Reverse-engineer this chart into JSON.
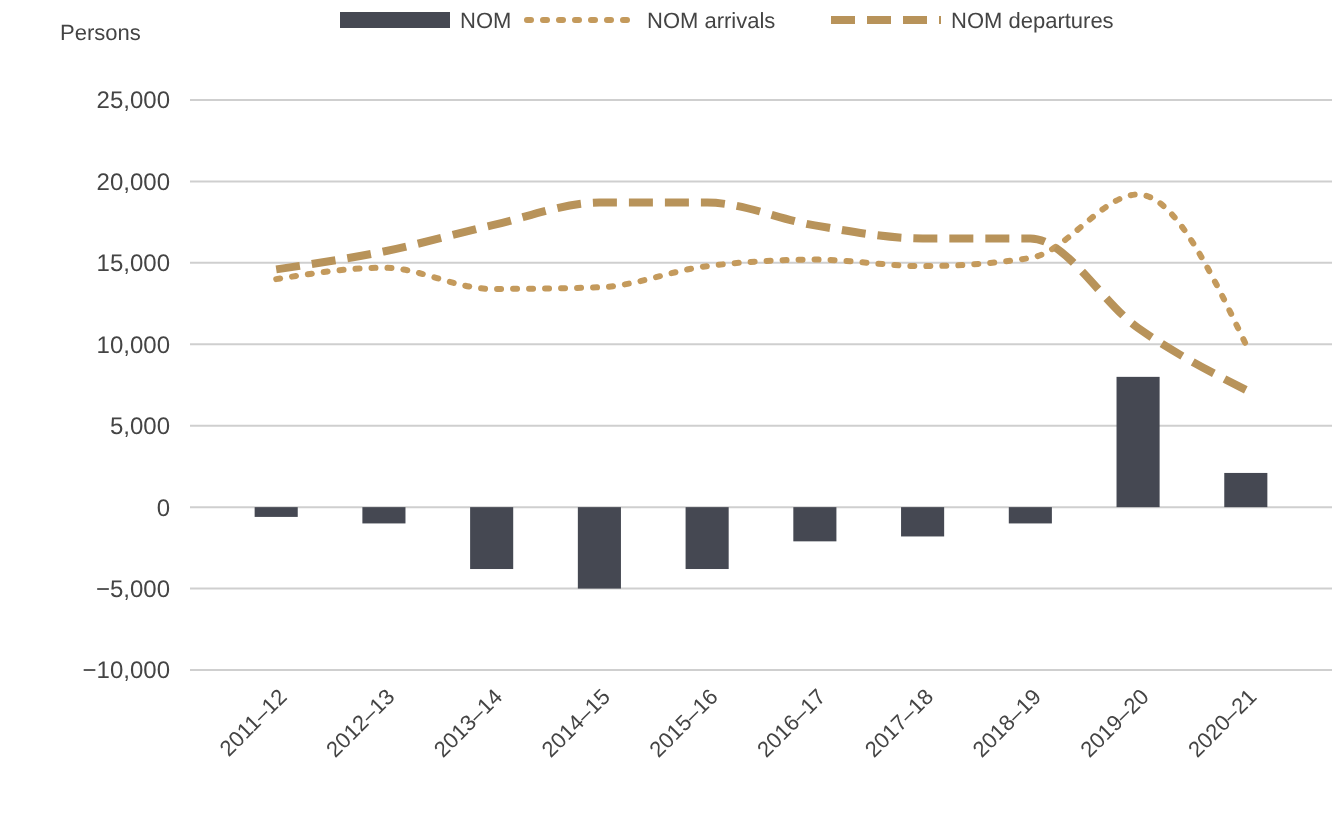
{
  "chart_data": {
    "type": "bar",
    "ylabel": "Persons",
    "categories": [
      "2011–12",
      "2012–13",
      "2013–14",
      "2014–15",
      "2015–16",
      "2016–17",
      "2017–18",
      "2018–19",
      "2019–20",
      "2020–21"
    ],
    "series": [
      {
        "name": "NOM",
        "color": "#454852",
        "values": [
          -600,
          -1000,
          -3800,
          -5000,
          -3800,
          -2100,
          -1800,
          -1000,
          8000,
          2100
        ]
      },
      {
        "name": "NOM arrivals",
        "type": "line",
        "line_style": "dotted",
        "color": "#c49a5c",
        "values": [
          14000,
          14700,
          13400,
          13500,
          14800,
          15200,
          14800,
          15300,
          19200,
          10000
        ]
      },
      {
        "name": "NOM departures",
        "type": "line",
        "line_style": "dashed",
        "color": "#b8935a",
        "values": [
          14600,
          15700,
          17300,
          18700,
          18700,
          17300,
          16500,
          16500,
          11000,
          7200
        ]
      }
    ],
    "ylim": [
      -10000,
      25000
    ],
    "yticks": [
      {
        "value": -10000,
        "label": "−10,000"
      },
      {
        "value": -5000,
        "label": "−5,000"
      },
      0,
      {
        "value": 5000,
        "label": "5,000"
      },
      {
        "value": 10000,
        "label": "10,000"
      },
      {
        "value": 15000,
        "label": "15,000"
      },
      {
        "value": 20000,
        "label": "20,000"
      },
      {
        "value": 25000,
        "label": "25,000"
      }
    ],
    "grid": "y",
    "legend": "top"
  }
}
